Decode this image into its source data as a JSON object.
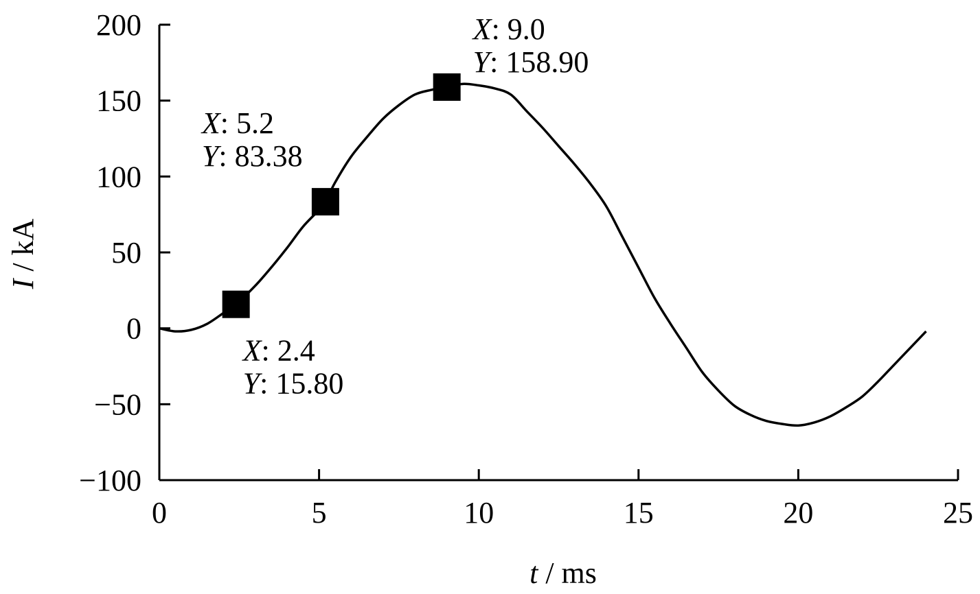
{
  "chart_data": {
    "type": "line",
    "title": "",
    "xlabel_var": "t",
    "xlabel_unit": " / ms",
    "ylabel_var": "I",
    "ylabel_unit": " / kA",
    "xlim": [
      0,
      25
    ],
    "ylim": [
      -100,
      200
    ],
    "x_ticks": [
      0,
      5,
      10,
      15,
      20,
      25
    ],
    "y_ticks": [
      -100,
      -50,
      0,
      50,
      100,
      150,
      200
    ],
    "x_tick_labels": [
      "0",
      "5",
      "10",
      "15",
      "20",
      "25"
    ],
    "y_tick_labels": [
      "−100",
      "−50",
      "0",
      "50",
      "100",
      "150",
      "200"
    ],
    "grid": false,
    "series": [
      {
        "x": [
          0,
          0.5,
          1,
          1.5,
          2,
          2.4,
          3,
          3.5,
          4,
          4.5,
          5,
          5.2,
          5.5,
          6,
          6.5,
          7,
          7.5,
          8,
          8.5,
          9.0,
          9.5,
          10,
          10.5,
          11,
          11.5,
          12,
          12.5,
          13,
          13.5,
          14,
          14.5,
          15,
          15.5,
          16,
          16.5,
          17,
          17.5,
          18,
          18.5,
          19,
          19.5,
          20,
          20.5,
          21,
          21.5,
          22,
          22.5,
          23,
          23.5,
          24
        ],
        "y": [
          0,
          -2,
          -1,
          3,
          10,
          15.8,
          28,
          40,
          53,
          67,
          78,
          83.38,
          96,
          113,
          126,
          138,
          147,
          154,
          157,
          158.9,
          161,
          160,
          158,
          154,
          143,
          132,
          120,
          108,
          95,
          80,
          60,
          40,
          20,
          3,
          -13,
          -29,
          -41,
          -51,
          -57,
          -61,
          -63,
          -64,
          -62,
          -58,
          -52,
          -45,
          -35,
          -24,
          -13,
          -2
        ]
      }
    ],
    "markers": [
      {
        "x": 2.4,
        "y": 15.8,
        "label_x_key": "X",
        "label_x_val": ": 2.4",
        "label_y_key": "Y",
        "label_y_val": ": 15.80",
        "label_pos": "below-right"
      },
      {
        "x": 5.2,
        "y": 83.38,
        "label_x_key": "X",
        "label_x_val": ": 5.2",
        "label_y_key": "Y",
        "label_y_val": ": 83.38",
        "label_pos": "above-left"
      },
      {
        "x": 9.0,
        "y": 158.9,
        "label_x_key": "X",
        "label_x_val": ": 9.0",
        "label_y_key": "Y",
        "label_y_val": ": 158.90",
        "label_pos": "above-right"
      }
    ]
  }
}
